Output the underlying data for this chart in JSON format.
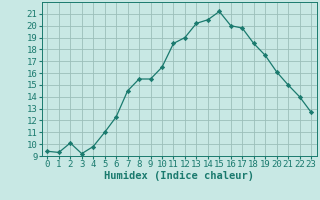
{
  "x": [
    0,
    1,
    2,
    3,
    4,
    5,
    6,
    7,
    8,
    9,
    10,
    11,
    12,
    13,
    14,
    15,
    16,
    17,
    18,
    19,
    20,
    21,
    22,
    23
  ],
  "y": [
    9.4,
    9.3,
    10.1,
    9.2,
    9.8,
    11.0,
    12.3,
    14.5,
    15.5,
    15.5,
    16.5,
    18.5,
    19.0,
    20.2,
    20.5,
    21.2,
    20.0,
    19.8,
    18.5,
    17.5,
    16.1,
    15.0,
    14.0,
    12.7
  ],
  "line_color": "#1a7a6e",
  "marker": "D",
  "marker_size": 2.2,
  "bg_color": "#c8e8e4",
  "grid_color": "#9bbfba",
  "xlabel": "Humidex (Indice chaleur)",
  "ylim": [
    9,
    22
  ],
  "xlim": [
    -0.5,
    23.5
  ],
  "yticks": [
    9,
    10,
    11,
    12,
    13,
    14,
    15,
    16,
    17,
    18,
    19,
    20,
    21
  ],
  "xticks": [
    0,
    1,
    2,
    3,
    4,
    5,
    6,
    7,
    8,
    9,
    10,
    11,
    12,
    13,
    14,
    15,
    16,
    17,
    18,
    19,
    20,
    21,
    22,
    23
  ],
  "tick_fontsize": 6.5,
  "label_fontsize": 7.5
}
